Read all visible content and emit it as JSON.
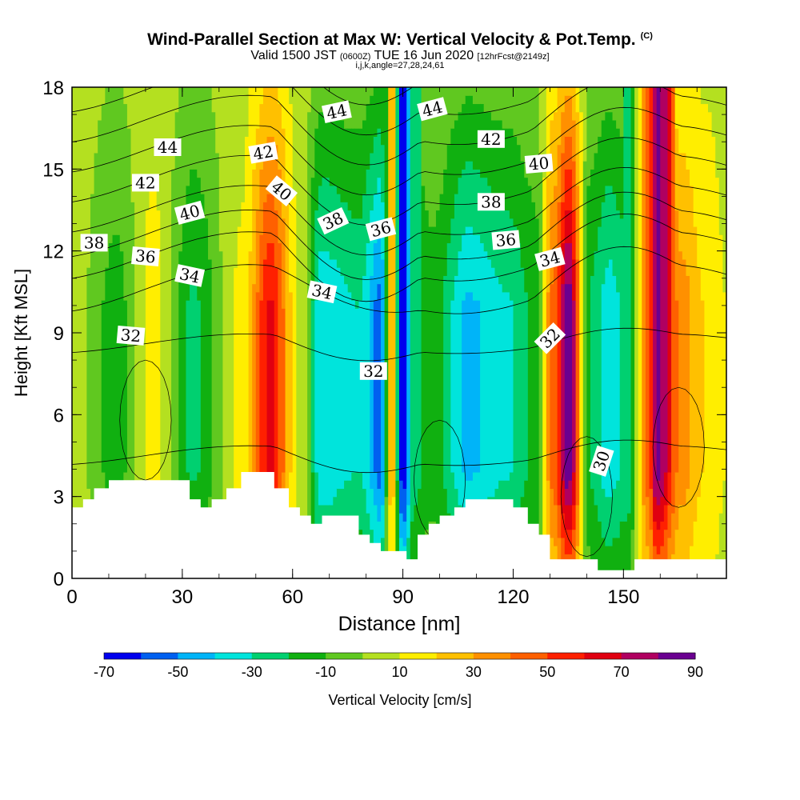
{
  "title": {
    "main": "Wind-Parallel Section at Max W: Vertical Velocity & Pot.Temp.",
    "main_suffix": "(C)",
    "valid_prefix": "Valid 1500 JST",
    "valid_z": "(0600Z)",
    "valid_date": "TUE 16 Jun 2020",
    "fcst": "[12hrFcst@2149z]",
    "indices": "i,j,k,angle=27,28,24,61"
  },
  "chart_data": {
    "type": "heatmap",
    "xlabel": "Distance [nm]",
    "ylabel": "Height [Kft MSL]",
    "xlim": [
      0,
      178
    ],
    "ylim": [
      0,
      18
    ],
    "x_ticks": [
      "0",
      "30",
      "60",
      "90",
      "120",
      "150"
    ],
    "x_tick_values": [
      0,
      30,
      60,
      90,
      120,
      150
    ],
    "y_ticks": [
      "0",
      "3",
      "6",
      "9",
      "12",
      "15",
      "18"
    ],
    "y_tick_values": [
      0,
      3,
      6,
      9,
      12,
      15,
      18
    ],
    "colorbar": {
      "label": "Vertical Velocity [cm/s]",
      "tick_labels": [
        "-70",
        "-50",
        "-30",
        "-10",
        "10",
        "30",
        "50",
        "70",
        "90"
      ],
      "levels": [
        -70,
        -60,
        -50,
        -40,
        -30,
        -20,
        -10,
        0,
        10,
        20,
        30,
        40,
        50,
        60,
        70,
        80,
        90
      ],
      "colors": [
        "#0000ee",
        "#0060f0",
        "#00b4f8",
        "#00e4dc",
        "#00d070",
        "#10b010",
        "#60c820",
        "#b4e020",
        "#ffee00",
        "#ffc000",
        "#ff9000",
        "#ff6000",
        "#ff2000",
        "#e00010",
        "#b00060",
        "#6a0090"
      ]
    },
    "w_bands": [
      {
        "x": 2,
        "w": 2,
        "name": "updraft-left"
      },
      {
        "x": 12,
        "w": -15,
        "name": "down-12"
      },
      {
        "x": 22,
        "w": 14,
        "name": "up-22"
      },
      {
        "x": 33,
        "w": -22,
        "name": "down-33"
      },
      {
        "x": 46,
        "w": 12,
        "name": "up-46"
      },
      {
        "x": 54,
        "w": 62,
        "name": "updraft-54"
      },
      {
        "x": 62,
        "w": 8,
        "name": "up-62"
      },
      {
        "x": 68,
        "w": -38,
        "name": "down-68"
      },
      {
        "x": 78,
        "w": -30,
        "name": "down-78"
      },
      {
        "x": 84,
        "w": -55,
        "name": "down-84"
      },
      {
        "x": 87,
        "w": 30,
        "name": "up-87"
      },
      {
        "x": 90,
        "w": -72,
        "name": "downdraft-90"
      },
      {
        "x": 93,
        "w": -25,
        "name": "down-93"
      },
      {
        "x": 98,
        "w": -15,
        "name": "down-98"
      },
      {
        "x": 108,
        "w": -42,
        "name": "down-108"
      },
      {
        "x": 118,
        "w": -32,
        "name": "down-118"
      },
      {
        "x": 126,
        "w": -18,
        "name": "down-126"
      },
      {
        "x": 131,
        "w": 45,
        "name": "up-131"
      },
      {
        "x": 135,
        "w": 88,
        "name": "updraft-135"
      },
      {
        "x": 141,
        "w": -22,
        "name": "down-141"
      },
      {
        "x": 146,
        "w": -36,
        "name": "down-146"
      },
      {
        "x": 151,
        "w": -28,
        "name": "down-151"
      },
      {
        "x": 157,
        "w": 48,
        "name": "up-157"
      },
      {
        "x": 159,
        "w": 85,
        "name": "updraft-159"
      },
      {
        "x": 166,
        "w": 35,
        "name": "up-166"
      },
      {
        "x": 172,
        "w": 20,
        "name": "up-172"
      },
      {
        "x": 178,
        "w": 10,
        "name": "up-178"
      }
    ],
    "terrain": [
      [
        0,
        2.6
      ],
      [
        3,
        2.6
      ],
      [
        3,
        2.9
      ],
      [
        6,
        2.9
      ],
      [
        6,
        3.3
      ],
      [
        10,
        3.3
      ],
      [
        10,
        3.6
      ],
      [
        32,
        3.6
      ],
      [
        32,
        2.9
      ],
      [
        35,
        2.9
      ],
      [
        35,
        2.6
      ],
      [
        38,
        2.6
      ],
      [
        38,
        2.9
      ],
      [
        42,
        2.9
      ],
      [
        42,
        3.3
      ],
      [
        46,
        3.3
      ],
      [
        46,
        3.9
      ],
      [
        55,
        3.9
      ],
      [
        55,
        3.3
      ],
      [
        59,
        3.3
      ],
      [
        59,
        2.6
      ],
      [
        62,
        2.6
      ],
      [
        62,
        2.3
      ],
      [
        65,
        2.3
      ],
      [
        65,
        2.0
      ],
      [
        68,
        2.0
      ],
      [
        68,
        2.3
      ],
      [
        78,
        2.3
      ],
      [
        78,
        1.6
      ],
      [
        81,
        1.6
      ],
      [
        81,
        1.3
      ],
      [
        84,
        1.3
      ],
      [
        84,
        1.0
      ],
      [
        91,
        1.0
      ],
      [
        91,
        0.7
      ],
      [
        94,
        0.7
      ],
      [
        94,
        1.6
      ],
      [
        97,
        1.6
      ],
      [
        97,
        2.0
      ],
      [
        100,
        2.0
      ],
      [
        100,
        2.3
      ],
      [
        104,
        2.3
      ],
      [
        104,
        2.6
      ],
      [
        107,
        2.6
      ],
      [
        107,
        2.9
      ],
      [
        120,
        2.9
      ],
      [
        120,
        2.6
      ],
      [
        124,
        2.6
      ],
      [
        124,
        2.0
      ],
      [
        127,
        2.0
      ],
      [
        127,
        1.6
      ],
      [
        130,
        1.6
      ],
      [
        130,
        0.7
      ],
      [
        143,
        0.7
      ],
      [
        143,
        0.3
      ],
      [
        153,
        0.3
      ],
      [
        153,
        0.7
      ],
      [
        178,
        0.7
      ]
    ],
    "theta_contours": [
      {
        "value": 30,
        "label": "30",
        "label_x": 144,
        "label_y": 4.3,
        "label_angle": -72
      },
      {
        "value": 32,
        "label": "32",
        "label_x": 16,
        "label_y": 8.9,
        "label_angle": 5
      },
      {
        "value": 32,
        "label": "32",
        "label_x": 82,
        "label_y": 7.6,
        "label_angle": 0
      },
      {
        "value": 32,
        "label": "32",
        "label_x": 130,
        "label_y": 8.8,
        "label_angle": -45
      },
      {
        "value": 34,
        "label": "34",
        "label_x": 32,
        "label_y": 11.1,
        "label_angle": 12
      },
      {
        "value": 34,
        "label": "34",
        "label_x": 68,
        "label_y": 10.5,
        "label_angle": 12
      },
      {
        "value": 34,
        "label": "34",
        "label_x": 130,
        "label_y": 11.7,
        "label_angle": -15
      },
      {
        "value": 36,
        "label": "36",
        "label_x": 20,
        "label_y": 11.8,
        "label_angle": 5
      },
      {
        "value": 36,
        "label": "36",
        "label_x": 84,
        "label_y": 12.8,
        "label_angle": -15
      },
      {
        "value": 36,
        "label": "36",
        "label_x": 118,
        "label_y": 12.4,
        "label_angle": -5
      },
      {
        "value": 38,
        "label": "38",
        "label_x": 6,
        "label_y": 12.3,
        "label_angle": 0
      },
      {
        "value": 38,
        "label": "38",
        "label_x": 71,
        "label_y": 13.1,
        "label_angle": -25
      },
      {
        "value": 38,
        "label": "38",
        "label_x": 114,
        "label_y": 13.8,
        "label_angle": 0
      },
      {
        "value": 40,
        "label": "40",
        "label_x": 32,
        "label_y": 13.4,
        "label_angle": -15
      },
      {
        "value": 40,
        "label": "40",
        "label_x": 57,
        "label_y": 14.2,
        "label_angle": 40
      },
      {
        "value": 40,
        "label": "40",
        "label_x": 127,
        "label_y": 15.2,
        "label_angle": -5
      },
      {
        "value": 42,
        "label": "42",
        "label_x": 20,
        "label_y": 14.5,
        "label_angle": 0
      },
      {
        "value": 42,
        "label": "42",
        "label_x": 52,
        "label_y": 15.6,
        "label_angle": -10
      },
      {
        "value": 42,
        "label": "42",
        "label_x": 114,
        "label_y": 16.1,
        "label_angle": 0
      },
      {
        "value": 44,
        "label": "44",
        "label_x": 26,
        "label_y": 15.8,
        "label_angle": 0
      },
      {
        "value": 44,
        "label": "44",
        "label_x": 72,
        "label_y": 17.1,
        "label_angle": -12
      },
      {
        "value": 44,
        "label": "44",
        "label_x": 98,
        "label_y": 17.2,
        "label_angle": -15
      }
    ],
    "grid": false,
    "legend": "bottom"
  }
}
